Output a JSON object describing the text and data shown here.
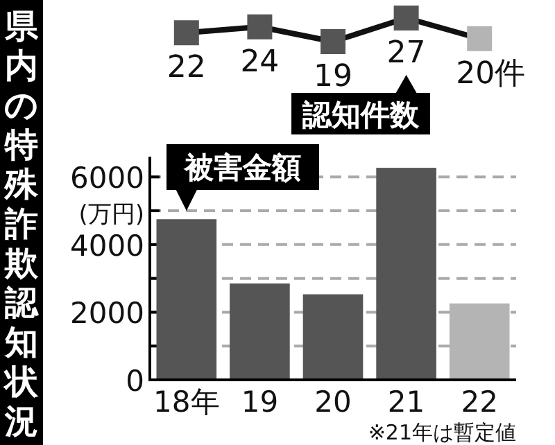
{
  "chart_data": [
    {
      "type": "line",
      "title": "県内の特殊詐欺認知状況",
      "categories": [
        null,
        null,
        null,
        null,
        null
      ],
      "series": [
        {
          "values": [
            22,
            24,
            19,
            27,
            20
          ],
          "color": "#111111",
          "colors": [
            "#555555",
            "#555555",
            "#555555",
            "#555555",
            "#b4b4b4"
          ],
          "value_labels": [
            "22",
            "24",
            "19",
            "27",
            "20件"
          ]
        }
      ],
      "marker": "square",
      "line_style": "solid",
      "annotations": [
        "認知件数"
      ]
    },
    {
      "type": "bar",
      "categories": [
        "18年",
        "19",
        "20",
        "21",
        "22"
      ],
      "series": [
        {
          "values": [
            4750,
            2850,
            2530,
            6270,
            2260
          ],
          "colors": [
            "#555555",
            "#555555",
            "#555555",
            "#555555",
            "#b4b4b4"
          ]
        }
      ],
      "ylabel": "(万円)",
      "ylim": [
        0,
        6600
      ],
      "yticks": [
        0,
        {
          "value": 1000,
          "label": null
        },
        2000,
        {
          "value": 3000,
          "label": null
        },
        4000,
        {
          "value": 5000,
          "label": null
        },
        6000
      ],
      "grid": "y",
      "annotations": [
        "被害金額",
        "※21年は暫定値"
      ]
    }
  ]
}
